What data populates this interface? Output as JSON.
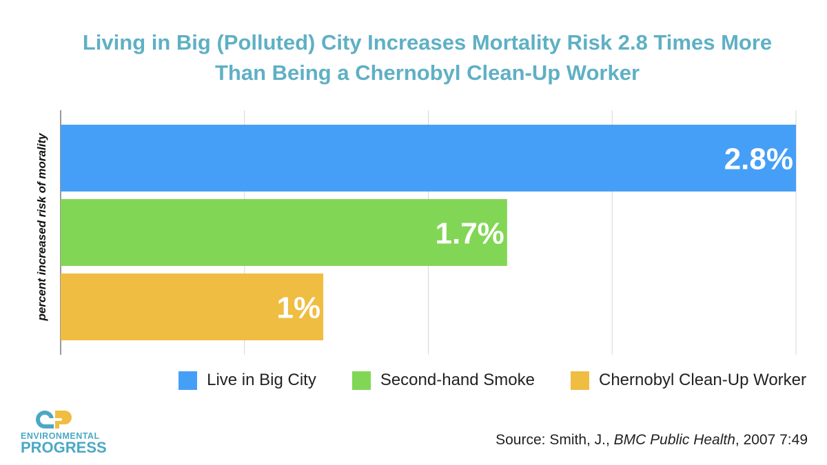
{
  "chart_data": {
    "type": "bar",
    "orientation": "horizontal",
    "title": "Living in Big (Polluted) City Increases Mortality Risk 2.8 Times More Than Being a Chernobyl Clean-Up Worker",
    "title_lines": [
      "Living in Big (Polluted) City Increases Mortality Risk 2.8 Times More",
      "Than Being a Chernobyl Clean-Up Worker"
    ],
    "ylabel": "percent increased risk of morality",
    "xlim": [
      0,
      2.8
    ],
    "grid": true,
    "grid_step": 0.7,
    "legend_position": "bottom-right",
    "series": [
      {
        "name": "Live in Big City",
        "value": 2.8,
        "label": "2.8%",
        "color": "#469ff7"
      },
      {
        "name": "Second-hand Smoke",
        "value": 1.7,
        "label": "1.7%",
        "color": "#82d655"
      },
      {
        "name": "Chernobyl Clean-Up Worker",
        "value": 1,
        "label": "1%",
        "color": "#efbd41"
      }
    ]
  },
  "source": {
    "prefix": "Source:  Smith, J., ",
    "journal": "BMC Public Health",
    "suffix": ", 2007 7:49"
  },
  "logo": {
    "line1": "ENVIRONMENTAL",
    "line2": "PROGRESS"
  }
}
